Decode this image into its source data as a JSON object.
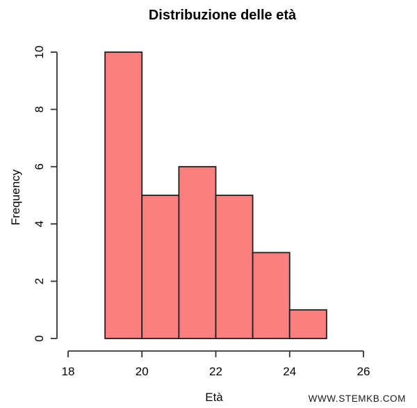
{
  "figure": {
    "title": "Distribuzione delle età",
    "watermark": "WWW.STEMKB.COM"
  },
  "chart_data": {
    "type": "bar",
    "subtype": "histogram",
    "title": "Distribuzione delle età",
    "xlabel": "Età",
    "ylabel": "Frequency",
    "bin_edges": [
      19,
      20,
      21,
      22,
      23,
      24,
      25
    ],
    "counts": [
      10,
      5,
      6,
      5,
      3,
      1
    ],
    "x_ticks": [
      18,
      20,
      22,
      24,
      26
    ],
    "y_ticks": [
      0,
      2,
      4,
      6,
      8,
      10
    ],
    "xlim": [
      18,
      26
    ],
    "ylim": [
      0,
      10
    ],
    "grid": false,
    "legend": false,
    "colors": {
      "bar_fill": "#FC7F7F",
      "bar_border": "#1F1F1F",
      "axis": "#333333",
      "text": "#000000",
      "watermark_text": "#1A1A1A"
    }
  }
}
